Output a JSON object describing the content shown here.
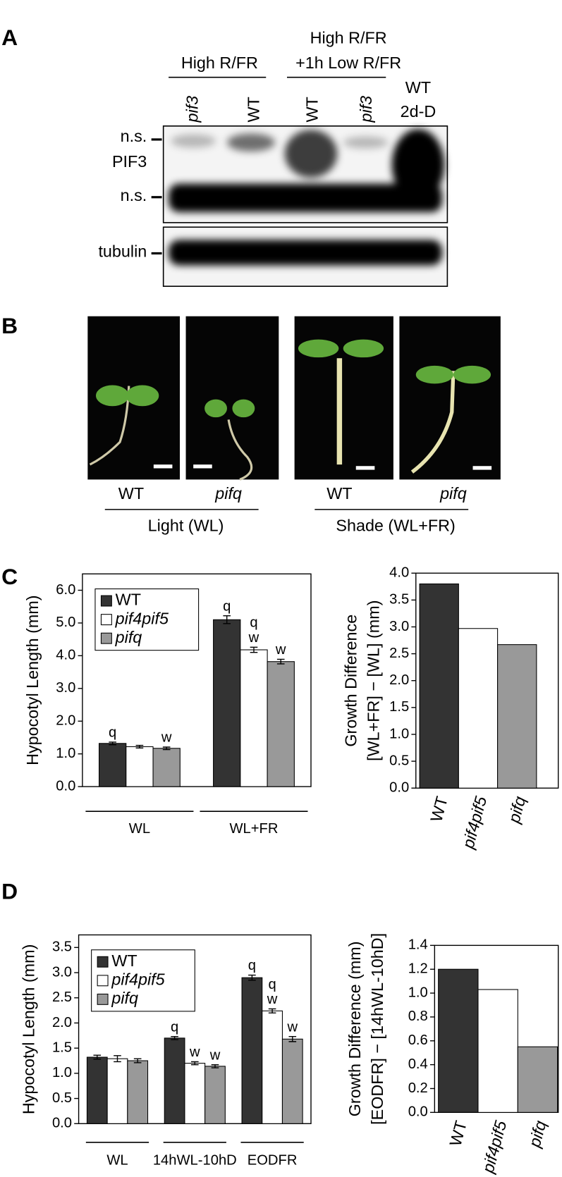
{
  "panel_labels": [
    "A",
    "B",
    "C",
    "D"
  ],
  "blot": {
    "group_left": "High R/FR",
    "group_right": [
      "High R/FR",
      "+1h Low R/FR"
    ],
    "lanes": [
      "pif3",
      "WT",
      "WT",
      "pif3"
    ],
    "last_lane": [
      "WT",
      "2d-D"
    ],
    "row_labels": [
      "n.s.",
      "PIF3",
      "n.s.",
      "tubulin"
    ]
  },
  "photos": {
    "labels": [
      "WT",
      "pifq",
      "WT",
      "pifq"
    ],
    "conditions": [
      "Light (WL)",
      "Shade (WL+FR)"
    ]
  },
  "chart_data": [
    {
      "type": "grouped-bar",
      "ylabel": [
        "Hypocotyl Length (mm)"
      ],
      "categories": [
        "WL",
        "WL+FR"
      ],
      "series": [
        {
          "name": "WT",
          "color": "#333333",
          "values": [
            1.32,
            5.1
          ],
          "errors": [
            0.04,
            0.12
          ],
          "letters": [
            [
              "q"
            ],
            [
              "q"
            ]
          ]
        },
        {
          "name": "pif4pif5",
          "color": "#ffffff",
          "values": [
            1.22,
            4.18
          ],
          "errors": [
            0.04,
            0.08
          ],
          "letters": [
            [],
            [
              "q",
              "w"
            ]
          ]
        },
        {
          "name": "pifq",
          "color": "#999999",
          "values": [
            1.17,
            3.82
          ],
          "errors": [
            0.04,
            0.07
          ],
          "letters": [
            [
              "w"
            ],
            [
              "w"
            ]
          ]
        }
      ],
      "ylim": [
        0,
        6.5
      ],
      "yticks": [
        {
          "value": 0,
          "label": "0.0"
        },
        {
          "value": 1,
          "label": "1.0"
        },
        {
          "value": 2,
          "label": "2.0"
        },
        {
          "value": 3,
          "label": "3.0"
        },
        {
          "value": 4,
          "label": "4.0"
        },
        {
          "value": 5,
          "label": "5.0"
        },
        {
          "value": 6,
          "label": "6.0"
        }
      ],
      "legend": "upper-left"
    },
    {
      "type": "bar",
      "ylabel": [
        "Growth Difference",
        "[WL+FR] − [WL] (mm)"
      ],
      "categories": [
        "WT",
        "pif4pif5",
        "pifq"
      ],
      "values": [
        3.8,
        2.97,
        2.67
      ],
      "colors": [
        "#333333",
        "#ffffff",
        "#999999"
      ],
      "ylim": [
        0,
        4
      ],
      "yticks": [
        {
          "value": 0,
          "label": "0.0"
        },
        0.5,
        {
          "value": 1,
          "label": "1.0"
        },
        1.5,
        {
          "value": 2,
          "label": "2.0"
        },
        2.5,
        {
          "value": 3,
          "label": "3.0"
        },
        3.5,
        {
          "value": 4,
          "label": "4.0"
        }
      ]
    },
    {
      "type": "grouped-bar",
      "ylabel": [
        "Hypocotyl Length (mm)"
      ],
      "categories": [
        "WL",
        "14hWL-10hD",
        "EODFR"
      ],
      "series": [
        {
          "name": "WT",
          "color": "#333333",
          "values": [
            1.32,
            1.7,
            2.9
          ],
          "errors": [
            0.04,
            0.03,
            0.05
          ],
          "letters": [
            [],
            [
              "q"
            ],
            [
              "q"
            ]
          ]
        },
        {
          "name": "pif4pif5",
          "color": "#ffffff",
          "values": [
            1.29,
            1.2,
            2.24
          ],
          "errors": [
            0.06,
            0.03,
            0.04
          ],
          "letters": [
            [],
            [
              "w"
            ],
            [
              "q",
              "w"
            ]
          ]
        },
        {
          "name": "pifq",
          "color": "#999999",
          "values": [
            1.25,
            1.14,
            1.68
          ],
          "errors": [
            0.04,
            0.03,
            0.05
          ],
          "letters": [
            [],
            [
              "w"
            ],
            [
              "w"
            ]
          ]
        }
      ],
      "ylim": [
        0,
        3.75
      ],
      "yticks": [
        {
          "value": 0,
          "label": "0.0"
        },
        0.5,
        {
          "value": 1,
          "label": "1.0"
        },
        1.5,
        {
          "value": 2,
          "label": "2.0"
        },
        2.5,
        {
          "value": 3,
          "label": "3.0"
        },
        3.5
      ],
      "legend": "upper-left"
    },
    {
      "type": "bar",
      "ylabel": [
        "Growth Difference (mm)",
        "[EODFR] − [14hWL-10hD]"
      ],
      "categories": [
        "WT",
        "pif4pif5",
        "pifq"
      ],
      "values": [
        1.2,
        1.03,
        0.55
      ],
      "colors": [
        "#333333",
        "#ffffff",
        "#999999"
      ],
      "ylim": [
        0,
        1.4
      ],
      "yticks": [
        {
          "value": 0,
          "label": "0.0"
        },
        {
          "value": 0.2,
          "label": "0.2"
        },
        {
          "value": 0.4,
          "label": "0.4"
        },
        {
          "value": 0.6,
          "label": "0.6"
        },
        {
          "value": 0.8,
          "label": "0.8"
        },
        {
          "value": 1,
          "label": "1.0"
        },
        {
          "value": 1.2,
          "label": "1.2"
        },
        {
          "value": 1.4,
          "label": "1.4"
        }
      ]
    }
  ]
}
